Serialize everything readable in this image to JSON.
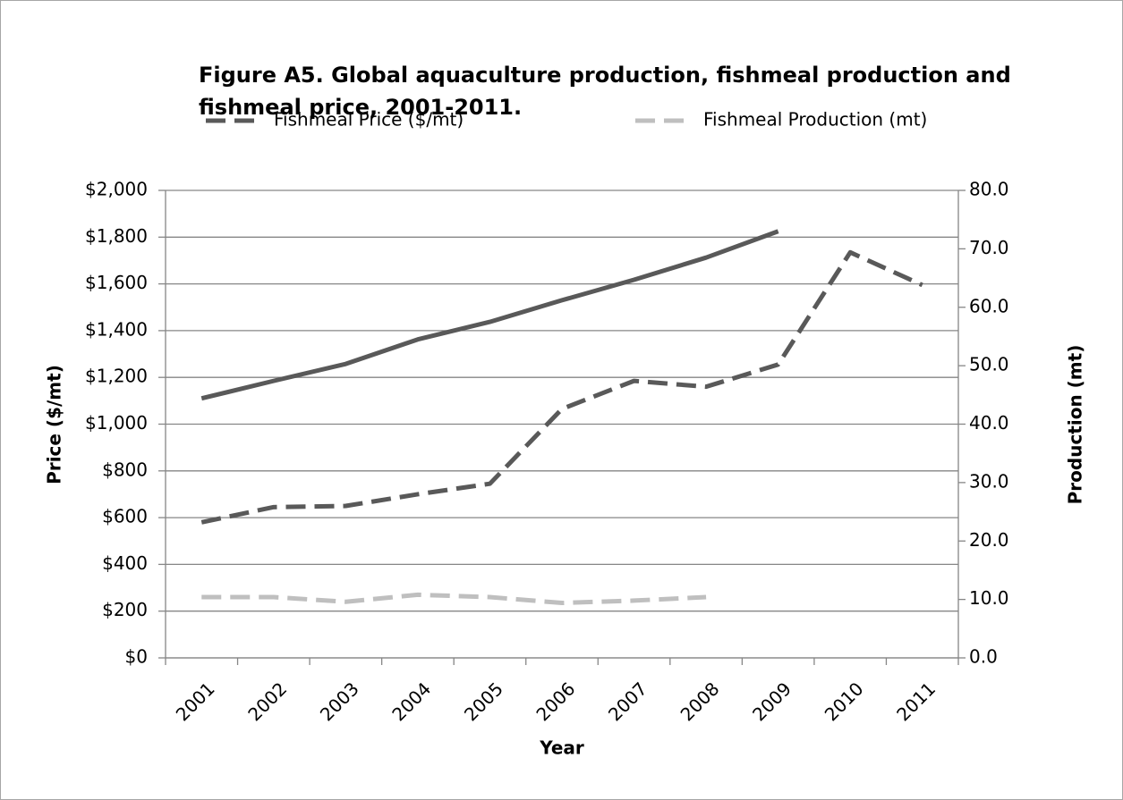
{
  "chart_data": {
    "type": "line",
    "title": [
      "Figure A5. Global aquaculture production, fishmeal production and",
      "fishmeal price, 2001-2011."
    ],
    "x_label": "Year",
    "y_label": "Price ($/mt)",
    "y2_label": "Production (mt)",
    "categories": [
      "2001",
      "2002",
      "2003",
      "2004",
      "2005",
      "2006",
      "2007",
      "2008",
      "2009",
      "2010",
      "2011"
    ],
    "series": [
      {
        "color": "#595959",
        "dash": false,
        "axis": "y2",
        "values": [
          44.4,
          47.4,
          50.3,
          54.5,
          57.5,
          61.2,
          64.7,
          68.5,
          73.0,
          null,
          null
        ]
      },
      {
        "name": "Fishmeal Price ($/mt)",
        "color": "#595959",
        "dash": true,
        "axis": "y",
        "values": [
          580,
          645,
          650,
          700,
          745,
          1065,
          1185,
          1160,
          1255,
          1735,
          1595
        ]
      },
      {
        "name": "Fishmeal Production (mt)",
        "color": "#bfbfbf",
        "dash": true,
        "axis": "y2",
        "values": [
          10.4,
          10.4,
          9.6,
          10.8,
          10.4,
          9.4,
          9.8,
          10.4,
          null,
          null,
          null
        ]
      }
    ],
    "ylim": [
      0,
      2000
    ],
    "yticks": [
      {
        "value": 0,
        "label": "$0"
      },
      {
        "value": 200,
        "label": "$200"
      },
      {
        "value": 400,
        "label": "$400"
      },
      {
        "value": 600,
        "label": "$600"
      },
      {
        "value": 800,
        "label": "$800"
      },
      {
        "value": 1000,
        "label": "$1,000"
      },
      {
        "value": 1200,
        "label": "$1,200"
      },
      {
        "value": 1400,
        "label": "$1,400"
      },
      {
        "value": 1600,
        "label": "$1,600"
      },
      {
        "value": 1800,
        "label": "$1,800"
      },
      {
        "value": 2000,
        "label": "$2,000"
      }
    ],
    "y2lim": [
      0,
      80
    ],
    "y2ticks": [
      {
        "value": 0,
        "label": "0.0"
      },
      {
        "value": 10,
        "label": "10.0"
      },
      {
        "value": 20,
        "label": "20.0"
      },
      {
        "value": 30,
        "label": "30.0"
      },
      {
        "value": 40,
        "label": "40.0"
      },
      {
        "value": 50,
        "label": "50.0"
      },
      {
        "value": 60,
        "label": "60.0"
      },
      {
        "value": 70,
        "label": "70.0"
      },
      {
        "value": 80,
        "label": "80.0"
      }
    ],
    "grid": true,
    "legend": "top"
  }
}
